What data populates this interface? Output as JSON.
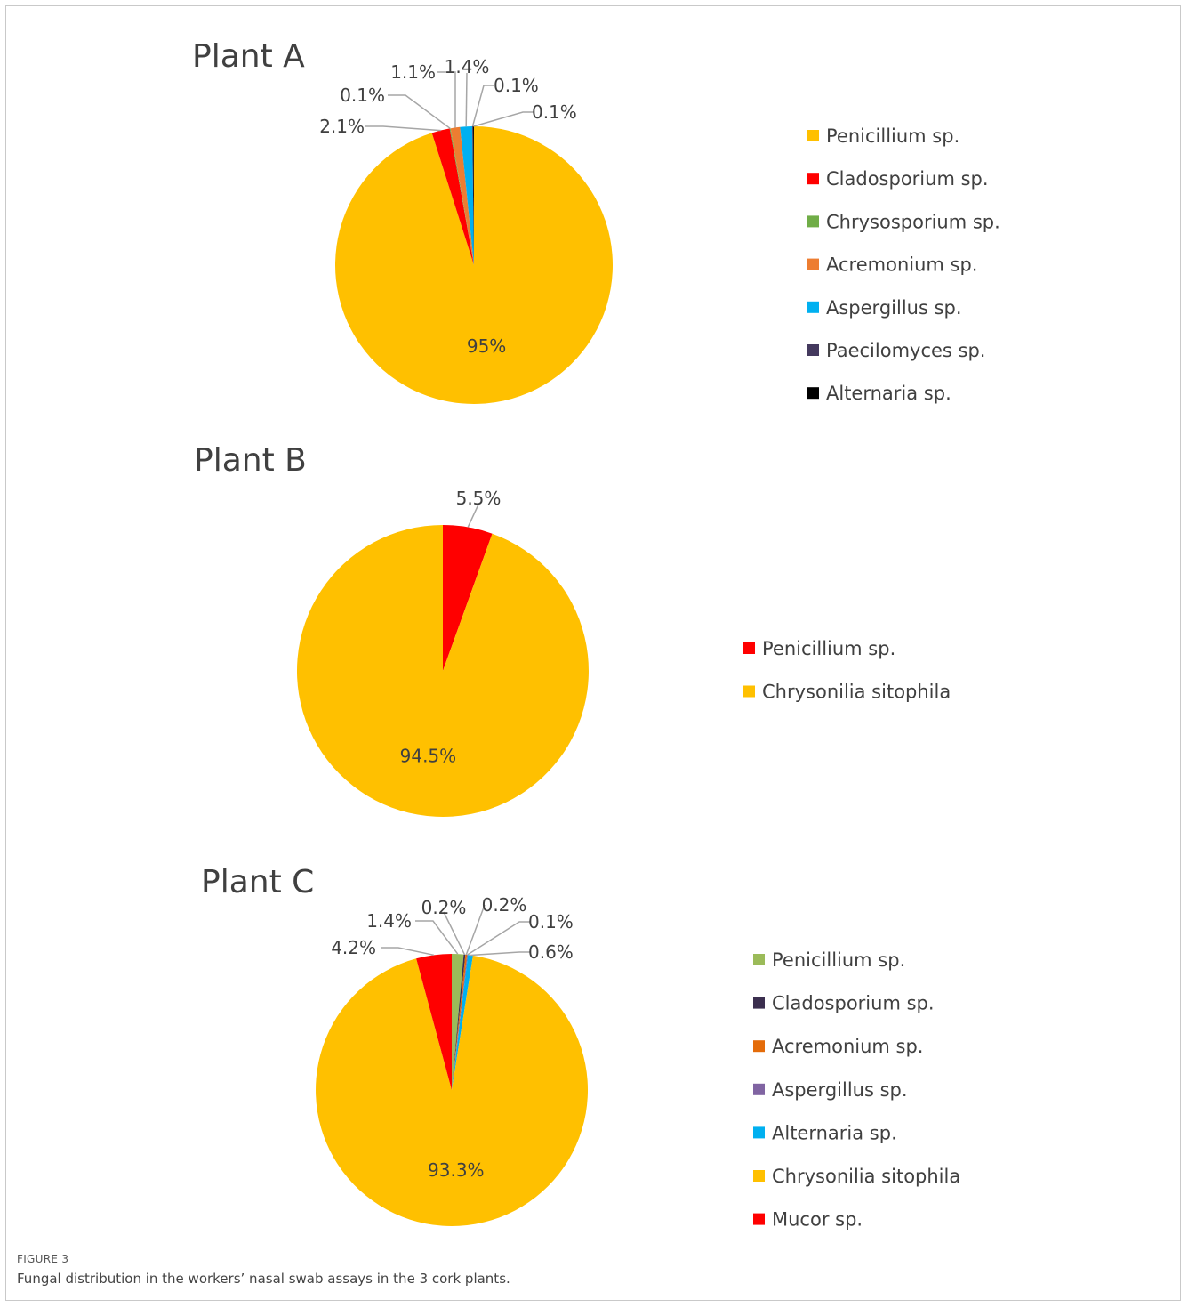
{
  "figure": {
    "label": "FIGURE 3",
    "caption": "Fungal distribution in the workers’ nasal swab assays in the 3 cork plants."
  },
  "chart_data": [
    {
      "type": "pie",
      "title": "Plant A",
      "legend_position": "right",
      "slices": [
        {
          "name": "Penicillium sp.",
          "value": 95.0,
          "label": "95%",
          "color": "#FFC000"
        },
        {
          "name": "Cladosporium sp.",
          "value": 2.1,
          "label": "2.1%",
          "color": "#FF0000"
        },
        {
          "name": "Chrysosporium sp.",
          "value": 0.1,
          "label": "0.1%",
          "color": "#70AD47"
        },
        {
          "name": "Acremonium sp.",
          "value": 1.1,
          "label": "1.1%",
          "color": "#ED7D31"
        },
        {
          "name": "Aspergillus sp.",
          "value": 1.4,
          "label": "1.4%",
          "color": "#00B0F0"
        },
        {
          "name": "Paecilomyces sp.",
          "value": 0.1,
          "label": "0.1%",
          "color": "#44395E"
        },
        {
          "name": "Alternaria sp.",
          "value": 0.1,
          "label": "0.1%",
          "color": "#000000"
        }
      ]
    },
    {
      "type": "pie",
      "title": "Plant B",
      "legend_position": "right",
      "slices": [
        {
          "name": "Penicillium sp.",
          "value": 5.5,
          "label": "5.5%",
          "color": "#FF0000"
        },
        {
          "name": "Chrysonilia sitophila",
          "value": 94.5,
          "label": "94.5%",
          "color": "#FFC000"
        }
      ]
    },
    {
      "type": "pie",
      "title": "Plant C",
      "legend_position": "right",
      "slices": [
        {
          "name": "Penicillium sp.",
          "value": 1.4,
          "label": "1.4%",
          "color": "#9BBB59"
        },
        {
          "name": "Cladosporium sp.",
          "value": 0.2,
          "label": "0.2%",
          "color": "#3B2F4F"
        },
        {
          "name": "Acremonium sp.",
          "value": 0.2,
          "label": "0.2%",
          "color": "#E46C0A"
        },
        {
          "name": "Aspergillus sp.",
          "value": 0.1,
          "label": "0.1%",
          "color": "#8064A2"
        },
        {
          "name": "Alternaria sp.",
          "value": 0.6,
          "label": "0.6%",
          "color": "#00B0F0"
        },
        {
          "name": "Chrysonilia sitophila",
          "value": 93.3,
          "label": "93.3%",
          "color": "#FFC000"
        },
        {
          "name": "Mucor sp.",
          "value": 4.2,
          "label": "4.2%",
          "color": "#FF0000"
        }
      ]
    }
  ]
}
